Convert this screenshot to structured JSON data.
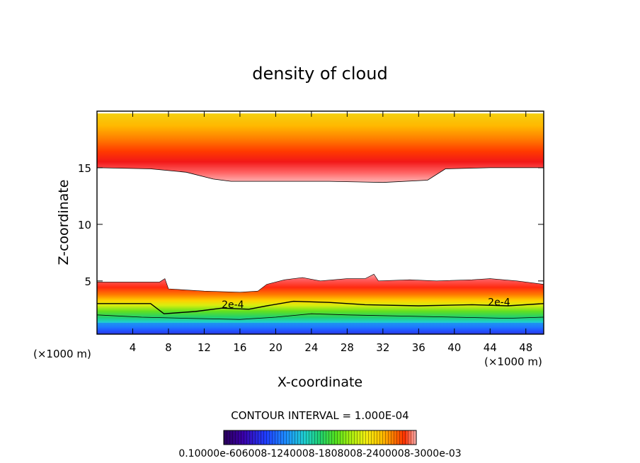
{
  "colors": {
    "palette": [
      "#2a005a",
      "#3a00a8",
      "#1f3fff",
      "#1e8cff",
      "#1fcfd0",
      "#20d070",
      "#52e020",
      "#a8ee10",
      "#f4ee10",
      "#ffc000",
      "#ff7a00",
      "#ff3000",
      "#f21818",
      "#ff7070",
      "#ffb6b6"
    ]
  },
  "chart_data": {
    "type": "contour",
    "title": "density of cloud",
    "xlabel": "X-coordinate",
    "ylabel": "Z-coordinate",
    "x_unit": "(×1000 m)",
    "x_unit_right": "(×1000 m)",
    "xlim": [
      0,
      50
    ],
    "ylim": [
      0.3,
      20
    ],
    "x_ticks": [
      4,
      8,
      12,
      16,
      20,
      24,
      28,
      32,
      36,
      40,
      44,
      48
    ],
    "y_ticks": [
      5,
      10,
      15
    ],
    "contour_interval_text": "CONTOUR INTERVAL = 1.000E-04",
    "contour_labels": [
      {
        "text": "2e-4",
        "x": 15.2,
        "z": 2.5
      },
      {
        "text": "2e-4",
        "x": 45.0,
        "z": 2.7
      }
    ],
    "upper_layer": {
      "base_z": [
        [
          0,
          15
        ],
        [
          6,
          14.9
        ],
        [
          10,
          14.6
        ],
        [
          13,
          14.0
        ],
        [
          15,
          13.8
        ],
        [
          20,
          13.8
        ],
        [
          26,
          13.8
        ],
        [
          32,
          13.7
        ],
        [
          37,
          13.9
        ],
        [
          39,
          14.9
        ],
        [
          44,
          15.0
        ],
        [
          50,
          15.0
        ]
      ],
      "top_z": 19.8
    },
    "lower_layer": {
      "top_z": [
        [
          0,
          4.9
        ],
        [
          7,
          4.9
        ],
        [
          7.6,
          5.2
        ],
        [
          8,
          4.3
        ],
        [
          12,
          4.1
        ],
        [
          16,
          4.0
        ],
        [
          18,
          4.1
        ],
        [
          19,
          4.7
        ],
        [
          21,
          5.1
        ],
        [
          23,
          5.3
        ],
        [
          25,
          5.0
        ],
        [
          28,
          5.2
        ],
        [
          30,
          5.2
        ],
        [
          31,
          5.6
        ],
        [
          31.5,
          5.0
        ],
        [
          35,
          5.1
        ],
        [
          38,
          5.0
        ],
        [
          42,
          5.1
        ],
        [
          44,
          5.2
        ],
        [
          47,
          5.0
        ],
        [
          50,
          4.7
        ]
      ],
      "contour_2e4_z": [
        [
          0,
          3.0
        ],
        [
          6,
          3.0
        ],
        [
          7.5,
          2.1
        ],
        [
          11,
          2.3
        ],
        [
          14,
          2.6
        ],
        [
          17,
          2.5
        ],
        [
          19,
          2.8
        ],
        [
          22,
          3.2
        ],
        [
          26,
          3.1
        ],
        [
          30,
          2.9
        ],
        [
          36,
          2.8
        ],
        [
          42,
          2.9
        ],
        [
          46,
          2.8
        ],
        [
          50,
          3.0
        ]
      ],
      "contour_1e4_z": [
        [
          0,
          2.0
        ],
        [
          5,
          1.8
        ],
        [
          10,
          1.7
        ],
        [
          16,
          1.6
        ],
        [
          20,
          1.8
        ],
        [
          24,
          2.1
        ],
        [
          28,
          2.0
        ],
        [
          34,
          1.9
        ],
        [
          40,
          1.8
        ],
        [
          46,
          1.7
        ],
        [
          50,
          1.8
        ]
      ]
    },
    "colorbar": {
      "min": 0.0001,
      "max": 0.003,
      "tick_labels_text": "0.10000e-606008-1240008-1808008-2400008-3000e-03"
    }
  }
}
